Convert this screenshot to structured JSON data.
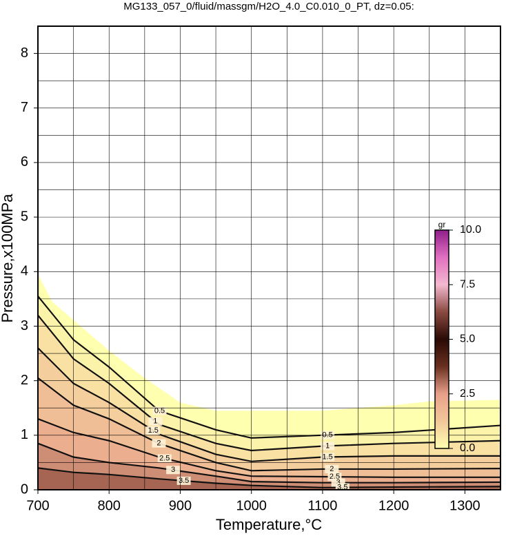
{
  "chart_data": {
    "type": "contour",
    "title": "MG133_057_0/fluid/massgm/H2O_4.0_C0.010_0_PT, dz=0.05:",
    "x_label": "Temperature,°C",
    "y_label": "Pressure,x100MPa",
    "xlim": [
      700,
      1350
    ],
    "ylim": [
      0,
      8.5
    ],
    "xticks": [
      700,
      800,
      900,
      1000,
      1100,
      1200,
      1300
    ],
    "yticks": [
      0,
      1,
      2,
      3,
      4,
      5,
      6,
      7,
      8
    ],
    "grid": true,
    "xgrid": [
      750,
      800,
      850,
      900,
      950,
      1000,
      1050,
      1100,
      1150,
      1200,
      1250,
      1300
    ],
    "ygrid": [
      0.5,
      1,
      1.5,
      2,
      2.5,
      3,
      3.5,
      4,
      4.5,
      5,
      5.5,
      6,
      6.5,
      7,
      7.5,
      8
    ],
    "domain": {
      "x": [
        700,
        720,
        760,
        800,
        850,
        900,
        950,
        1000,
        1100,
        1200,
        1250,
        1350
      ],
      "y": [
        3.95,
        3.45,
        3.0,
        2.55,
        2.05,
        1.6,
        1.45,
        1.45,
        1.45,
        1.55,
        1.62,
        1.65
      ]
    },
    "contour_x": [
      700,
      750,
      800,
      870,
      950,
      1000,
      1100,
      1200,
      1350
    ],
    "contours": [
      {
        "level": 0.5,
        "y": [
          3.55,
          2.75,
          2.25,
          1.45,
          1.1,
          0.95,
          1.0,
          1.05,
          1.18
        ]
      },
      {
        "level": 1,
        "y": [
          3.2,
          2.4,
          1.95,
          1.2,
          0.85,
          0.72,
          0.8,
          0.85,
          0.9
        ]
      },
      {
        "level": 1.5,
        "y": [
          2.6,
          1.95,
          1.6,
          1.02,
          0.65,
          0.52,
          0.6,
          0.62,
          0.62
        ]
      },
      {
        "level": 2,
        "y": [
          2.05,
          1.55,
          1.3,
          0.85,
          0.5,
          0.35,
          0.38,
          0.38,
          0.39
        ]
      },
      {
        "level": 2.5,
        "y": [
          1.3,
          1.05,
          0.9,
          0.6,
          0.35,
          0.25,
          0.24,
          0.23,
          0.23
        ]
      },
      {
        "level": 3,
        "y": [
          0.85,
          0.6,
          0.5,
          0.4,
          0.25,
          0.15,
          0.13,
          0.13,
          0.14
        ]
      },
      {
        "level": 3.5,
        "y": [
          0.4,
          0.32,
          0.28,
          0.2,
          0.12,
          0.08,
          0.04,
          0.05,
          0.06
        ]
      }
    ],
    "colorbar": {
      "label": "gr",
      "lim": [
        0,
        10
      ],
      "ticks": [
        {
          "value": 0,
          "label": "0.0"
        },
        2.5,
        {
          "value": 5,
          "label": "5.0"
        },
        7.5,
        {
          "value": 10,
          "label": "10.0"
        }
      ],
      "colors": [
        "#ffffb0",
        "#f2c79a",
        "#e8a08a",
        "#6a3020",
        "#2a0a05",
        "#8a4a40",
        "#f4b8d0",
        "#e070c0",
        "#90208a"
      ]
    }
  }
}
